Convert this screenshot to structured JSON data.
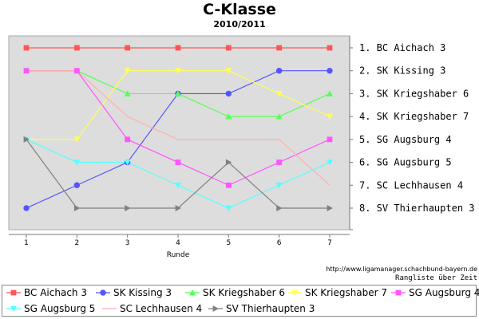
{
  "chart_data": {
    "type": "line",
    "title": "C-Klasse",
    "subtitle": "2010/2011",
    "xlabel": "Runde",
    "ylabel": "",
    "x": [
      1,
      2,
      3,
      4,
      5,
      6,
      7
    ],
    "ylim": [
      1,
      8
    ],
    "y_inverted": true,
    "grid": false,
    "legend_position": "bottom",
    "rank_labels": [
      "1. BC Aichach 3",
      "2. SK Kissing 3",
      "3. SK Kriegshaber 6",
      "4. SK Kriegshaber 7",
      "5. SG Augsburg 4",
      "6. SG Augsburg 5",
      "7. SC Lechhausen 4",
      "8. SV Thierhaupten 3"
    ],
    "series": [
      {
        "name": "BC Aichach 3",
        "values": [
          1,
          1,
          1,
          1,
          1,
          1,
          1
        ],
        "color": "#ff5555",
        "marker": "square"
      },
      {
        "name": "SK Kissing 3",
        "values": [
          8,
          7,
          6,
          3,
          3,
          2,
          2
        ],
        "color": "#5555ff",
        "marker": "circle"
      },
      {
        "name": "SK Kriegshaber 6",
        "values": [
          2,
          2,
          3,
          3,
          4,
          4,
          3
        ],
        "color": "#55ff55",
        "marker": "triangle-up"
      },
      {
        "name": "SK Kriegshaber 7",
        "values": [
          5,
          5,
          2,
          2,
          2,
          3,
          4
        ],
        "color": "#ffff55",
        "marker": "triangle-down"
      },
      {
        "name": "SG Augsburg 4",
        "values": [
          2,
          2,
          5,
          6,
          7,
          6,
          5
        ],
        "color": "#ff55ff",
        "marker": "square"
      },
      {
        "name": "SG Augsburg 5",
        "values": [
          5,
          6,
          6,
          7,
          8,
          7,
          6
        ],
        "color": "#55ffff",
        "marker": "triangle-down"
      },
      {
        "name": "SC Lechhausen 4",
        "values": [
          2,
          2,
          4,
          5,
          5,
          5,
          7
        ],
        "color": "#ffafaf",
        "marker": "none"
      },
      {
        "name": "SV Thierhaupten 3",
        "values": [
          5,
          8,
          8,
          8,
          6,
          8,
          8
        ],
        "color": "#808080",
        "marker": "triangle-right"
      }
    ]
  },
  "source_url": "http://www.ligamanager.schachbund-bayern.de",
  "footer_note": "Rangliste über Zeit"
}
